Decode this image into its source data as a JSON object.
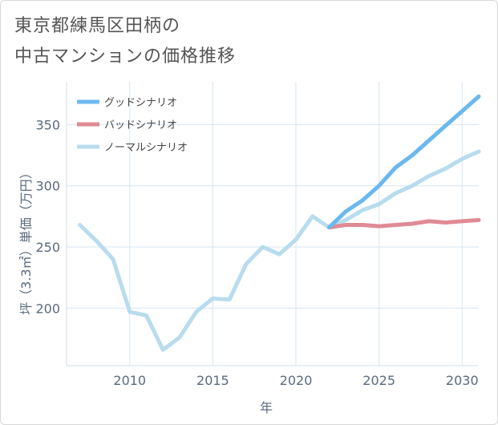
{
  "title_line1": "東京都練馬区田柄の",
  "title_line2": "中古マンションの価格推移",
  "chart_data": {
    "type": "line",
    "xlabel": "年",
    "ylabel": "坪（3.3㎡）単価（万円）",
    "xlim": [
      2006.2,
      2031
    ],
    "ylim": [
      153,
      385
    ],
    "x_ticks": [
      2010,
      2015,
      2020,
      2025,
      2030
    ],
    "y_ticks": [
      200,
      250,
      300,
      350
    ],
    "grid": true,
    "legend_position": "top-left",
    "series": [
      {
        "name": "グッドシナリオ",
        "color": "#6bb8ef",
        "x": [
          2022,
          2023,
          2024,
          2025,
          2026,
          2027,
          2028,
          2029,
          2030,
          2031
        ],
        "y": [
          266,
          279,
          288,
          300,
          315,
          325,
          337,
          349,
          361,
          373
        ]
      },
      {
        "name": "バッドシナリオ",
        "color": "#e08a94",
        "x": [
          2022,
          2023,
          2024,
          2025,
          2026,
          2027,
          2028,
          2029,
          2030,
          2031
        ],
        "y": [
          266,
          268,
          268,
          267,
          268,
          269,
          271,
          270,
          271,
          272
        ]
      },
      {
        "name": "ノーマルシナリオ",
        "color": "#b8dced",
        "x": [
          2007,
          2008,
          2009,
          2010,
          2011,
          2012,
          2013,
          2014,
          2015,
          2016,
          2017,
          2018,
          2019,
          2020,
          2021,
          2022,
          2023,
          2024,
          2025,
          2026,
          2027,
          2028,
          2029,
          2030,
          2031
        ],
        "y": [
          268,
          255,
          240,
          197,
          194,
          166,
          176,
          197,
          208,
          207,
          236,
          250,
          244,
          256,
          275,
          266,
          272,
          280,
          285,
          294,
          300,
          308,
          314,
          322,
          328
        ]
      }
    ]
  }
}
